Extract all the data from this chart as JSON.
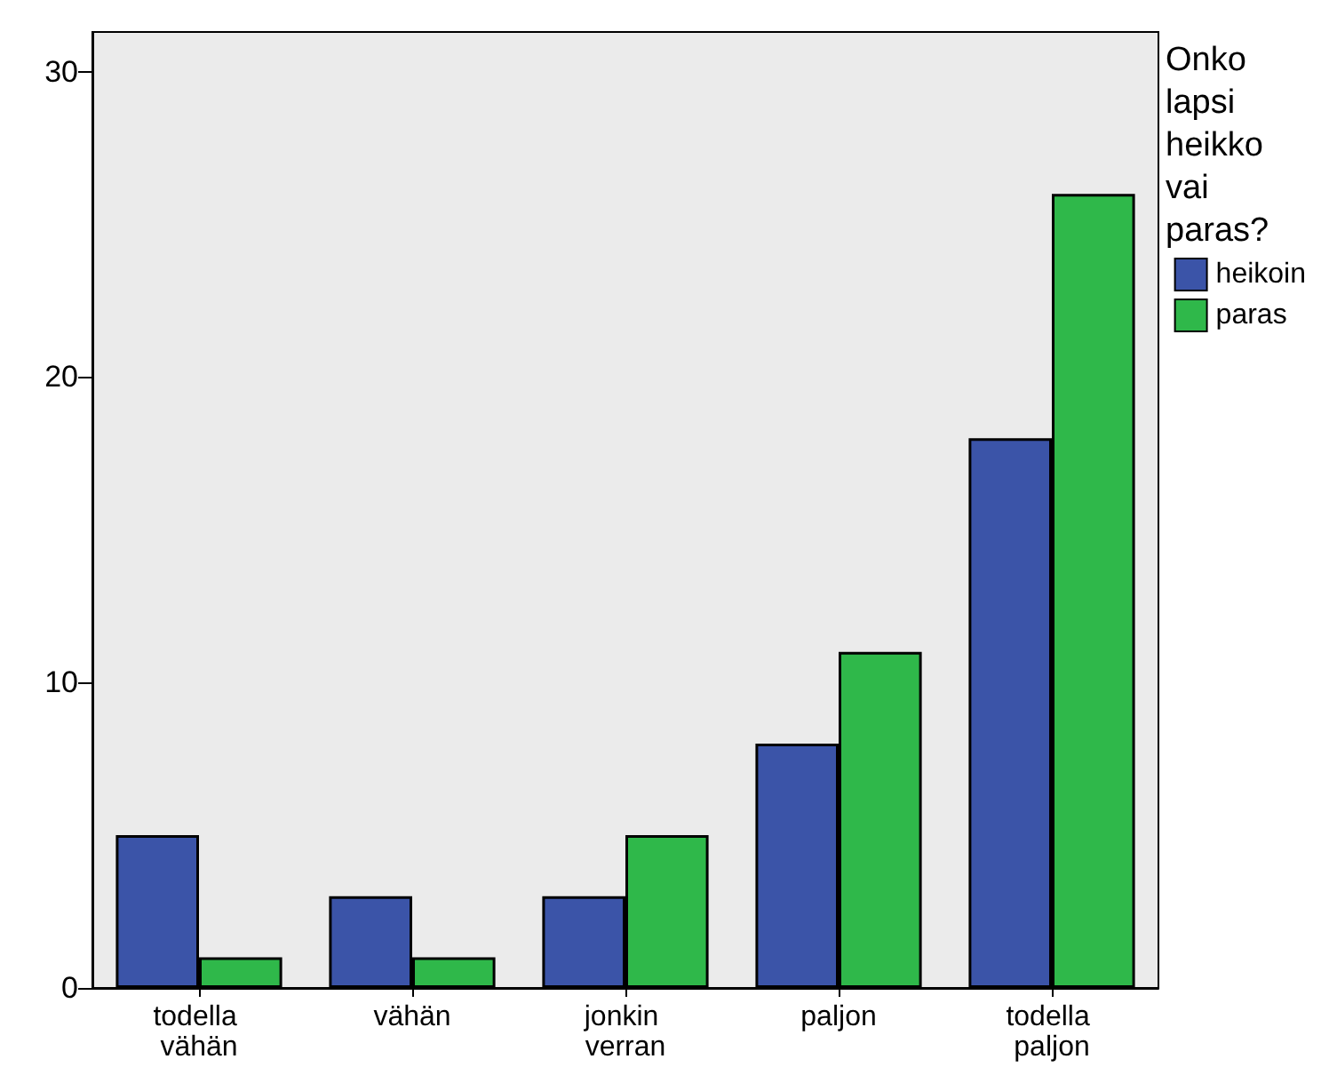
{
  "chart_data": {
    "type": "bar",
    "legend_title": "Onko lapsi heikko vai paras?",
    "categories": [
      "todella vähän",
      "vähän",
      "jonkin verran",
      "paljon",
      "todella paljon"
    ],
    "series": [
      {
        "name": "heikoin",
        "color": "#3b54a8",
        "values": [
          5,
          3,
          3,
          8,
          18
        ]
      },
      {
        "name": "paras",
        "color": "#2fb84a",
        "values": [
          1,
          1,
          5,
          11,
          26
        ]
      }
    ],
    "ylim": [
      0,
      31.3
    ],
    "yticks": [
      0,
      10,
      20,
      30
    ],
    "grid": false,
    "legend": "right"
  }
}
